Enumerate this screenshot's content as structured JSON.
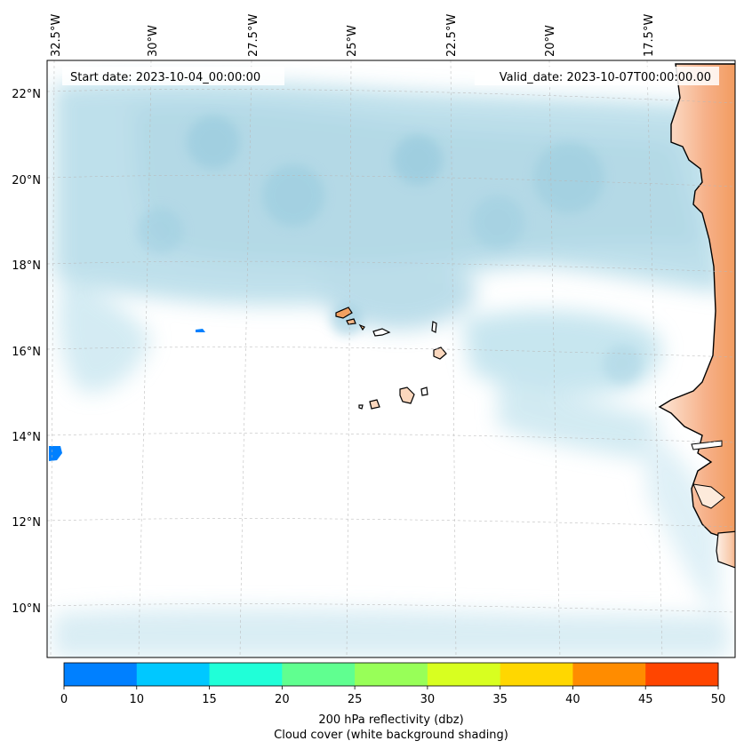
{
  "map": {
    "start_date": "Start date: 2023-10-04_00:00:00",
    "valid_date": "Valid_date: 2023-10-07T00:00:00.00",
    "lon_labels": [
      "32.5°W",
      "30°W",
      "27.5°W",
      "25°W",
      "22.5°W",
      "20°W",
      "17.5°W"
    ],
    "lat_labels": [
      "22°N",
      "20°N",
      "18°N",
      "16°N",
      "14°N",
      "12°N",
      "10°N"
    ],
    "gridlines": "on, dashed light grey",
    "features": [
      "Cape Verde islands",
      "West African coastline (Senegal, Gambia, Guinea-Bissau)"
    ],
    "cloud_cover_color": "#add8e6",
    "land_fill_color": "#f4a46b",
    "reflectivity_echoes": [
      {
        "location": "near 16.5°N 28.4°W",
        "color": "#0080ff"
      },
      {
        "location": "near 13.6°N 32.5°W",
        "color": "#0080ff"
      }
    ]
  },
  "colorbar": {
    "ticks": [
      "0",
      "10",
      "15",
      "20",
      "25",
      "30",
      "35",
      "40",
      "45",
      "50"
    ],
    "colors": [
      "#0080ff",
      "#00c8ff",
      "#20ffd8",
      "#60ff90",
      "#98ff58",
      "#d8ff20",
      "#ffd700",
      "#ff8c00",
      "#ff4500"
    ],
    "label_line1": "200 hPa reflectivity (dbz)",
    "label_line2": "Cloud cover (white background shading)"
  }
}
